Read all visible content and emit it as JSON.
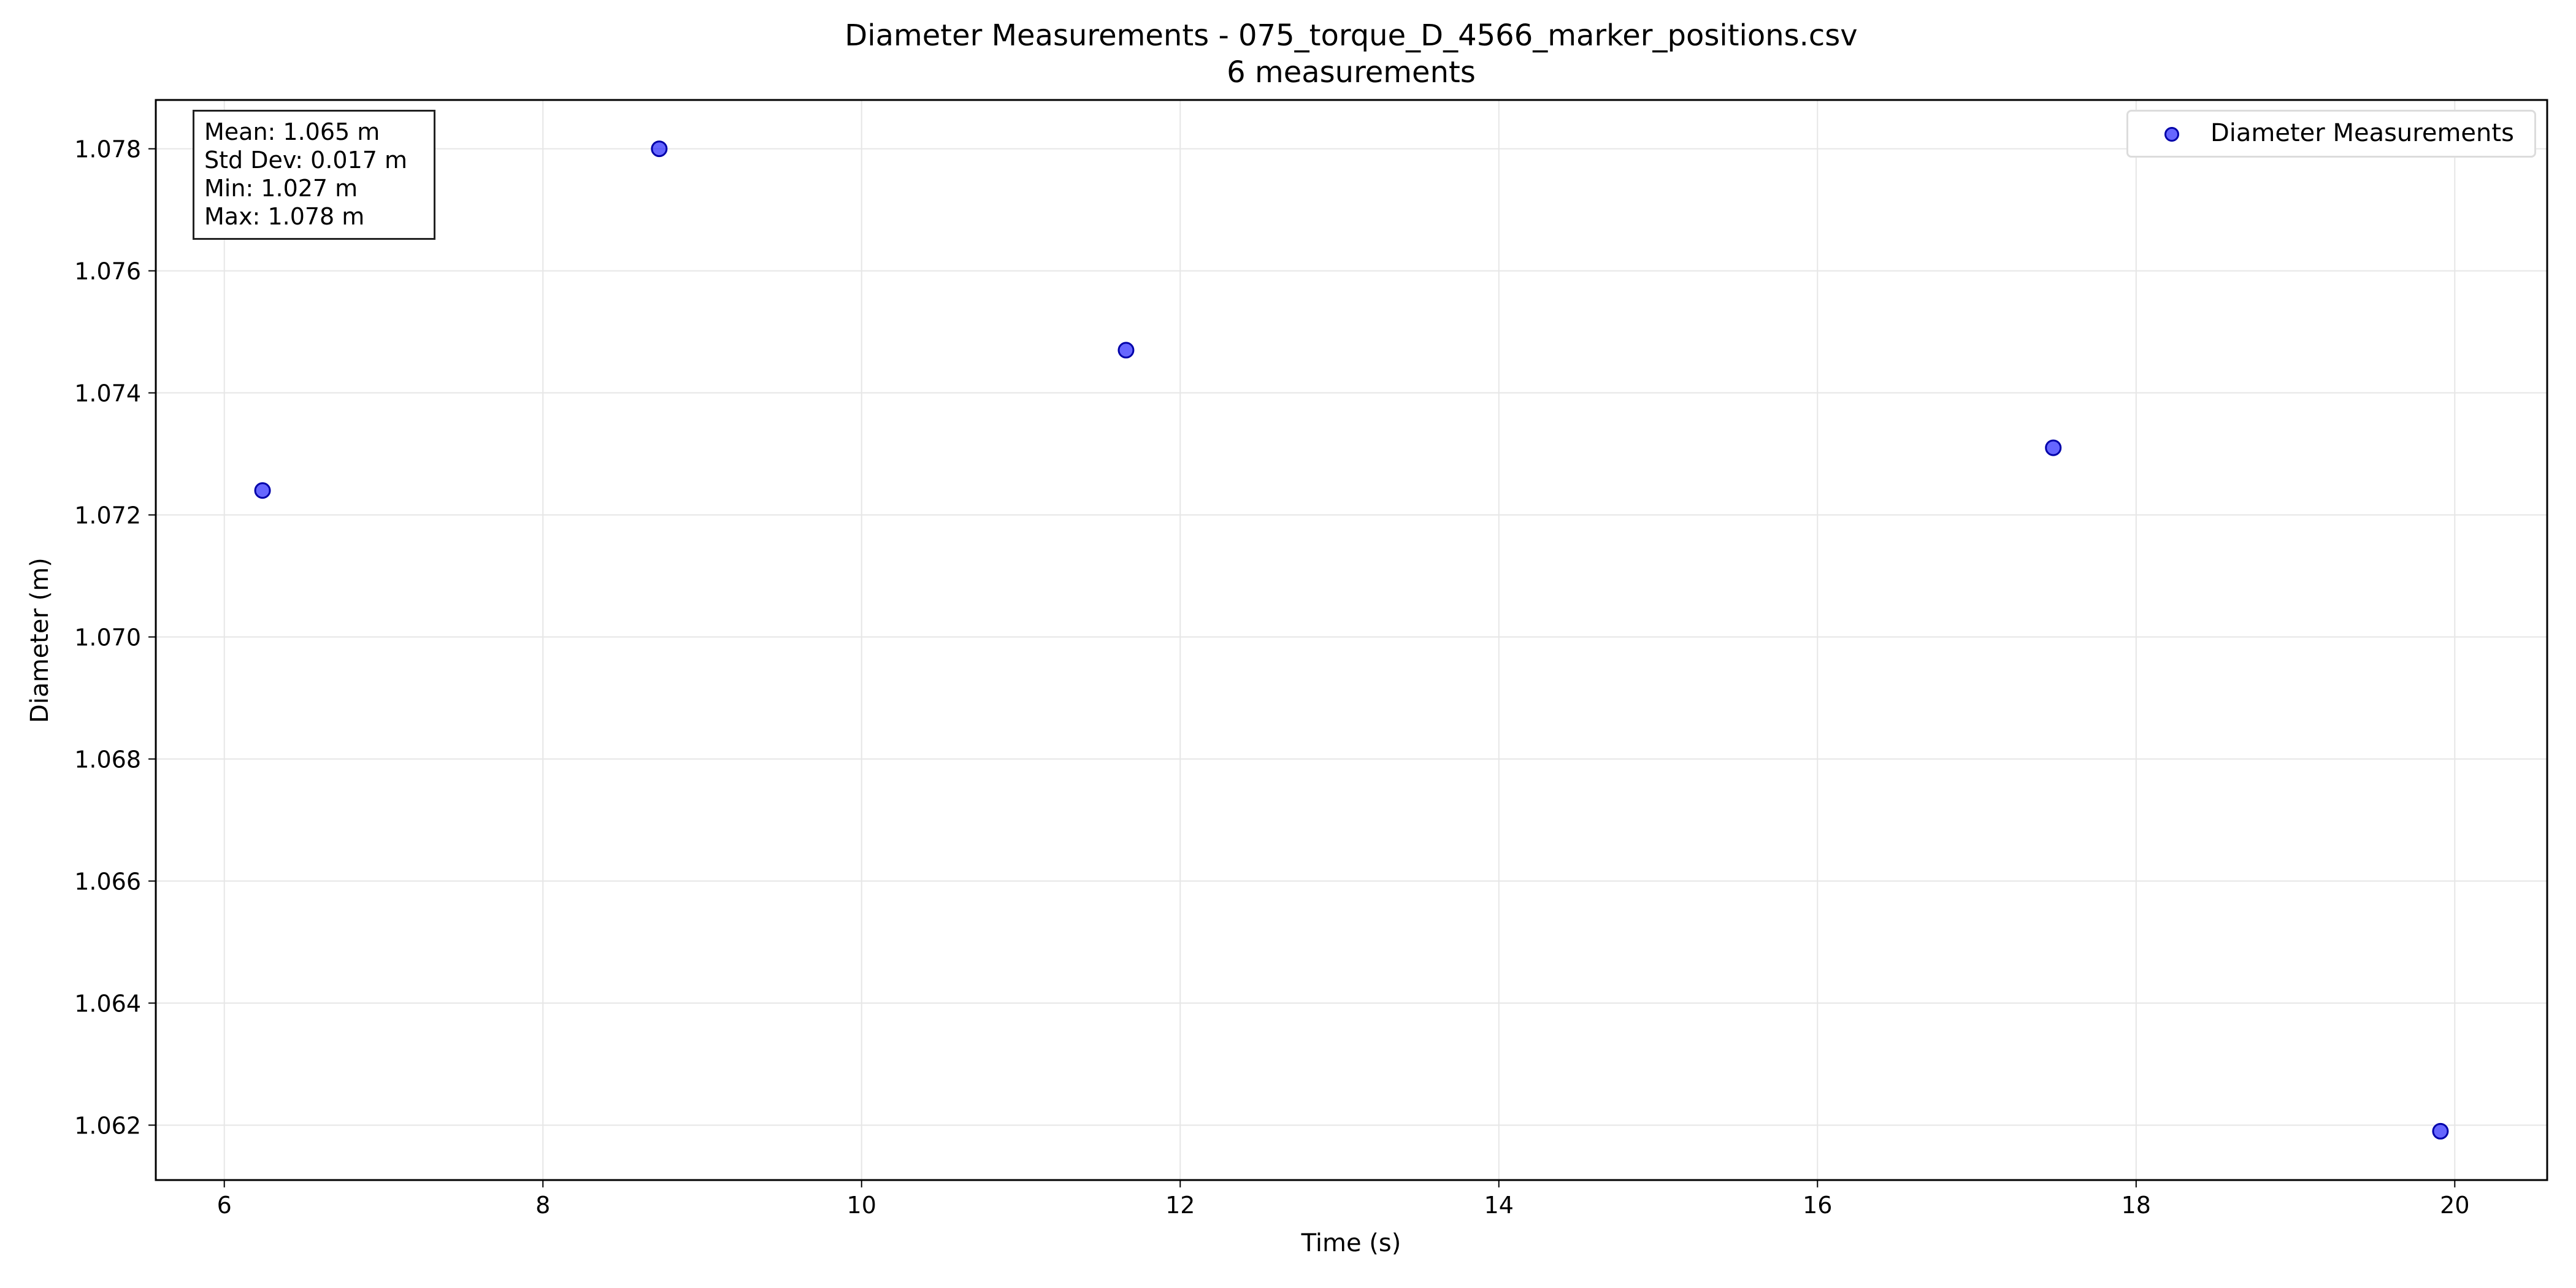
{
  "chart_data": {
    "type": "scatter",
    "title": "Diameter Measurements - 075_torque_D_4566_marker_positions.csv",
    "subtitle": "6 measurements",
    "xlabel": "Time (s)",
    "ylabel": "Diameter (m)",
    "xlim": [
      5.57,
      20.58
    ],
    "ylim": [
      1.0611,
      1.0788
    ],
    "x_ticks": [
      "6",
      "8",
      "10",
      "12",
      "14",
      "16",
      "18",
      "20"
    ],
    "y_ticks": [
      "1.062",
      "1.064",
      "1.066",
      "1.068",
      "1.070",
      "1.072",
      "1.074",
      "1.076",
      "1.078"
    ],
    "grid": true,
    "legend_position": "top-right",
    "series": [
      {
        "name": "Diameter Measurements",
        "color": "#0000ff",
        "points": [
          {
            "x": 6.24,
            "y": 1.0724
          },
          {
            "x": 8.73,
            "y": 1.078
          },
          {
            "x": 11.66,
            "y": 1.0747
          },
          {
            "x": 17.48,
            "y": 1.0731
          },
          {
            "x": 19.91,
            "y": 1.0619
          }
        ]
      }
    ],
    "stats": {
      "mean": "Mean: 1.065 m",
      "std": "Std Dev: 0.017 m",
      "min": "Min: 1.027 m",
      "max": "Max: 1.078 m"
    }
  }
}
